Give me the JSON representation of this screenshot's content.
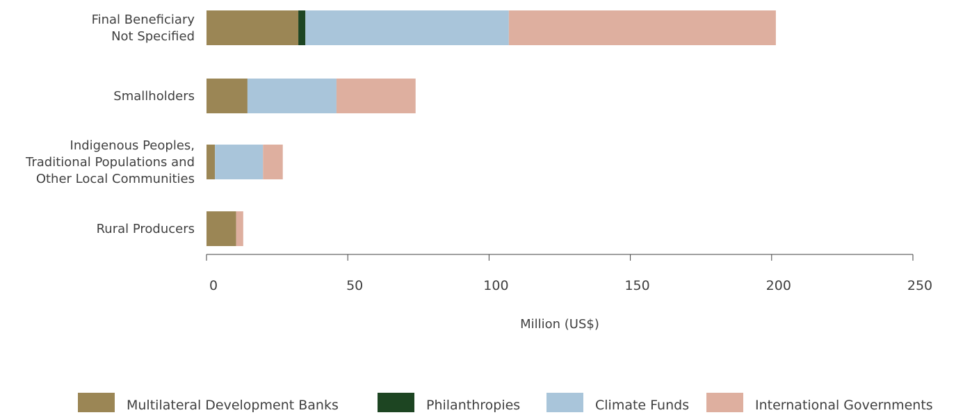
{
  "chart_data": {
    "type": "bar",
    "orientation": "horizontal",
    "stacked": true,
    "title": "",
    "xlabel": "Million (US$)",
    "ylabel": "",
    "xlim": [
      0,
      250
    ],
    "x_ticks": [
      "0",
      "50",
      "100",
      "150",
      "200",
      "250"
    ],
    "categories": [
      [
        "Final Beneficiary",
        "Not Specified"
      ],
      [
        "Smallholders"
      ],
      [
        "Indigenous Peoples,",
        "Traditional Populations and",
        "Other Local Communities"
      ],
      [
        "Rural Producers"
      ]
    ],
    "series": [
      {
        "name": "Multilateral Development Banks",
        "color": "#9b8655",
        "values": [
          32.5,
          14.5,
          3.0,
          10.5
        ]
      },
      {
        "name": "Philanthropies",
        "color": "#1d4522",
        "values": [
          2.5,
          0,
          0,
          0
        ]
      },
      {
        "name": "Climate Funds",
        "color": "#a9c5da",
        "values": [
          72.0,
          31.5,
          17.0,
          0
        ]
      },
      {
        "name": "International Governments",
        "color": "#deaf9f",
        "values": [
          94.5,
          28.0,
          7.0,
          2.5
        ]
      }
    ],
    "grid": false,
    "legend_position": "bottom"
  }
}
